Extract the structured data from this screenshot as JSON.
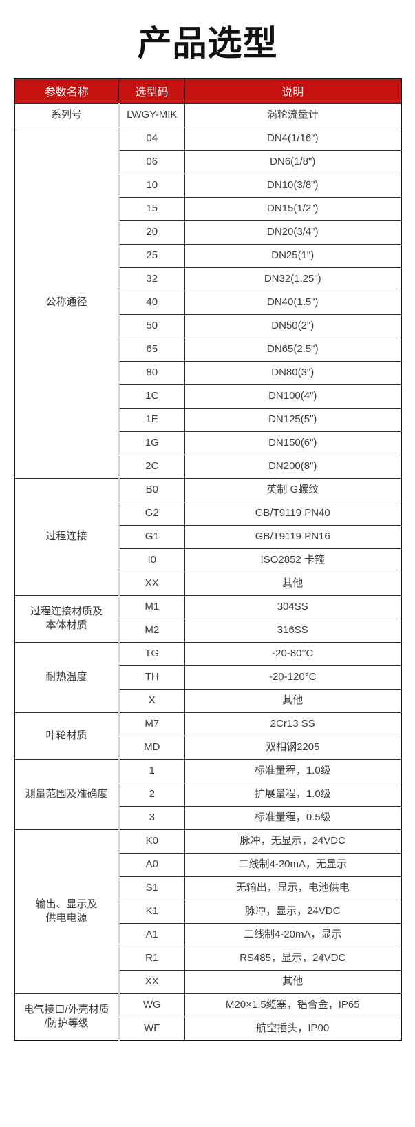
{
  "page": {
    "title": "产品选型"
  },
  "colors": {
    "header_bg": "#c71212",
    "header_text": "#ffffff",
    "border_dark": "#2d2d2d",
    "border_light": "#d5d5d5",
    "body_text": "#3c3c3c",
    "title_text": "#111111"
  },
  "table": {
    "headers": [
      "参数名称",
      "选型码",
      "说明"
    ],
    "groups": [
      {
        "name": "系列号",
        "name_lines": [
          "系列号"
        ],
        "rows": [
          {
            "code": "LWGY-MIK",
            "desc": "涡轮流量计"
          }
        ]
      },
      {
        "name": "公称通径",
        "name_lines": [
          "公称通径"
        ],
        "rows": [
          {
            "code": "04",
            "desc": "DN4(1/16\")"
          },
          {
            "code": "06",
            "desc": "DN6(1/8\")"
          },
          {
            "code": "10",
            "desc": "DN10(3/8\")"
          },
          {
            "code": "15",
            "desc": "DN15(1/2\")"
          },
          {
            "code": "20",
            "desc": "DN20(3/4\")"
          },
          {
            "code": "25",
            "desc": "DN25(1\")"
          },
          {
            "code": "32",
            "desc": "DN32(1.25\")"
          },
          {
            "code": "40",
            "desc": "DN40(1.5\")"
          },
          {
            "code": "50",
            "desc": "DN50(2\")"
          },
          {
            "code": "65",
            "desc": "DN65(2.5\")"
          },
          {
            "code": "80",
            "desc": "DN80(3\")"
          },
          {
            "code": "1C",
            "desc": "DN100(4\")"
          },
          {
            "code": "1E",
            "desc": "DN125(5\")"
          },
          {
            "code": "1G",
            "desc": "DN150(6\")"
          },
          {
            "code": "2C",
            "desc": "DN200(8\")"
          }
        ]
      },
      {
        "name": "过程连接",
        "name_lines": [
          "过程连接"
        ],
        "rows": [
          {
            "code": "B0",
            "desc": "英制 G螺纹"
          },
          {
            "code": "G2",
            "desc": "GB/T9119 PN40"
          },
          {
            "code": "G1",
            "desc": "GB/T9119 PN16"
          },
          {
            "code": "I0",
            "desc": "ISO2852 卡箍"
          },
          {
            "code": "XX",
            "desc": "其他"
          }
        ]
      },
      {
        "name": "过程连接材质及本体材质",
        "name_lines": [
          "过程连接材质及",
          "本体材质"
        ],
        "rows": [
          {
            "code": "M1",
            "desc": "304SS"
          },
          {
            "code": "M2",
            "desc": "316SS"
          }
        ]
      },
      {
        "name": "耐热温度",
        "name_lines": [
          "耐热温度"
        ],
        "rows": [
          {
            "code": "TG",
            "desc": "-20-80°C"
          },
          {
            "code": "TH",
            "desc": "-20-120°C"
          },
          {
            "code": "X",
            "desc": "其他"
          }
        ]
      },
      {
        "name": "叶轮材质",
        "name_lines": [
          "叶轮材质"
        ],
        "rows": [
          {
            "code": "M7",
            "desc": "2Cr13 SS"
          },
          {
            "code": "MD",
            "desc": "双相钢2205"
          }
        ]
      },
      {
        "name": "测量范围及准确度",
        "name_lines": [
          "测量范围及准确度"
        ],
        "rows": [
          {
            "code": "1",
            "desc": "标准量程，1.0级"
          },
          {
            "code": "2",
            "desc": "扩展量程，1.0级"
          },
          {
            "code": "3",
            "desc": "标准量程，0.5级"
          }
        ]
      },
      {
        "name": "输出、显示及供电电源",
        "name_lines": [
          "输出、显示及",
          "供电电源"
        ],
        "rows": [
          {
            "code": "K0",
            "desc": "脉冲，无显示，24VDC"
          },
          {
            "code": "A0",
            "desc": "二线制4-20mA，无显示"
          },
          {
            "code": "S1",
            "desc": "无输出，显示，电池供电"
          },
          {
            "code": "K1",
            "desc": "脉冲，显示，24VDC"
          },
          {
            "code": "A1",
            "desc": "二线制4-20mA，显示"
          },
          {
            "code": "R1",
            "desc": "RS485，显示，24VDC"
          },
          {
            "code": "XX",
            "desc": "其他"
          }
        ]
      },
      {
        "name": "电气接口/外壳材质/防护等级",
        "name_lines": [
          "电气接口/外壳材质",
          "/防护等级"
        ],
        "rows": [
          {
            "code": "WG",
            "desc": "M20×1.5缆塞，铝合金，IP65"
          },
          {
            "code": "WF",
            "desc": "航空插头，IP00"
          }
        ]
      }
    ]
  }
}
